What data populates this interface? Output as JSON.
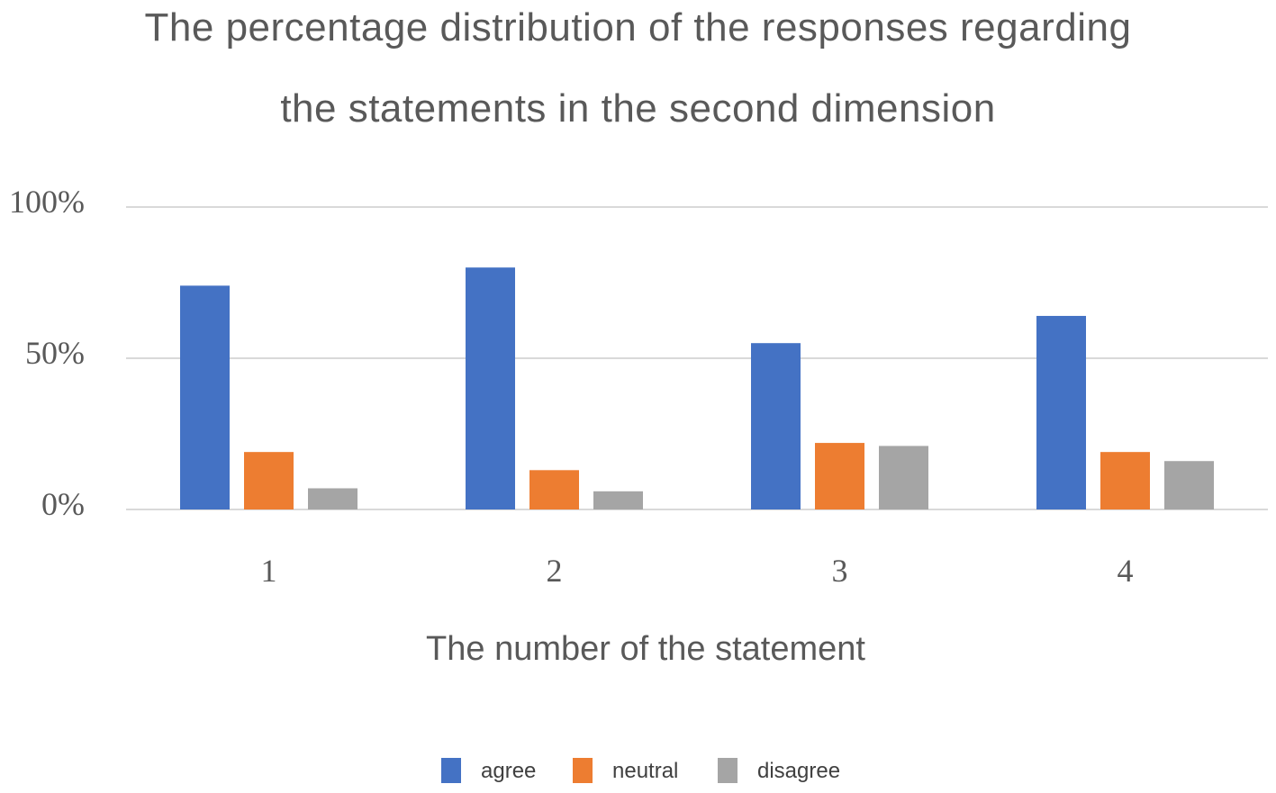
{
  "chart_data": {
    "type": "bar",
    "title_lines": [
      "The percentage distribution of the responses regarding",
      "the statements in the second dimension"
    ],
    "xlabel": "The number of the statement",
    "ylabel": "",
    "categories": [
      "1",
      "2",
      "3",
      "4"
    ],
    "ylim": [
      0,
      100
    ],
    "y_ticks": [
      {
        "value": 0,
        "label": "0%"
      },
      {
        "value": 50,
        "label": "50%"
      },
      {
        "value": 100,
        "label": "100%"
      }
    ],
    "grid": true,
    "legend_position": "bottom",
    "series": [
      {
        "name": "agree",
        "color": "#4472C4",
        "values": [
          74,
          80,
          55,
          64
        ]
      },
      {
        "name": "neutral",
        "color": "#ED7D31",
        "values": [
          19,
          13,
          22,
          19
        ]
      },
      {
        "name": "disagree",
        "color": "#A5A5A5",
        "values": [
          7,
          6,
          21,
          16
        ]
      }
    ]
  }
}
